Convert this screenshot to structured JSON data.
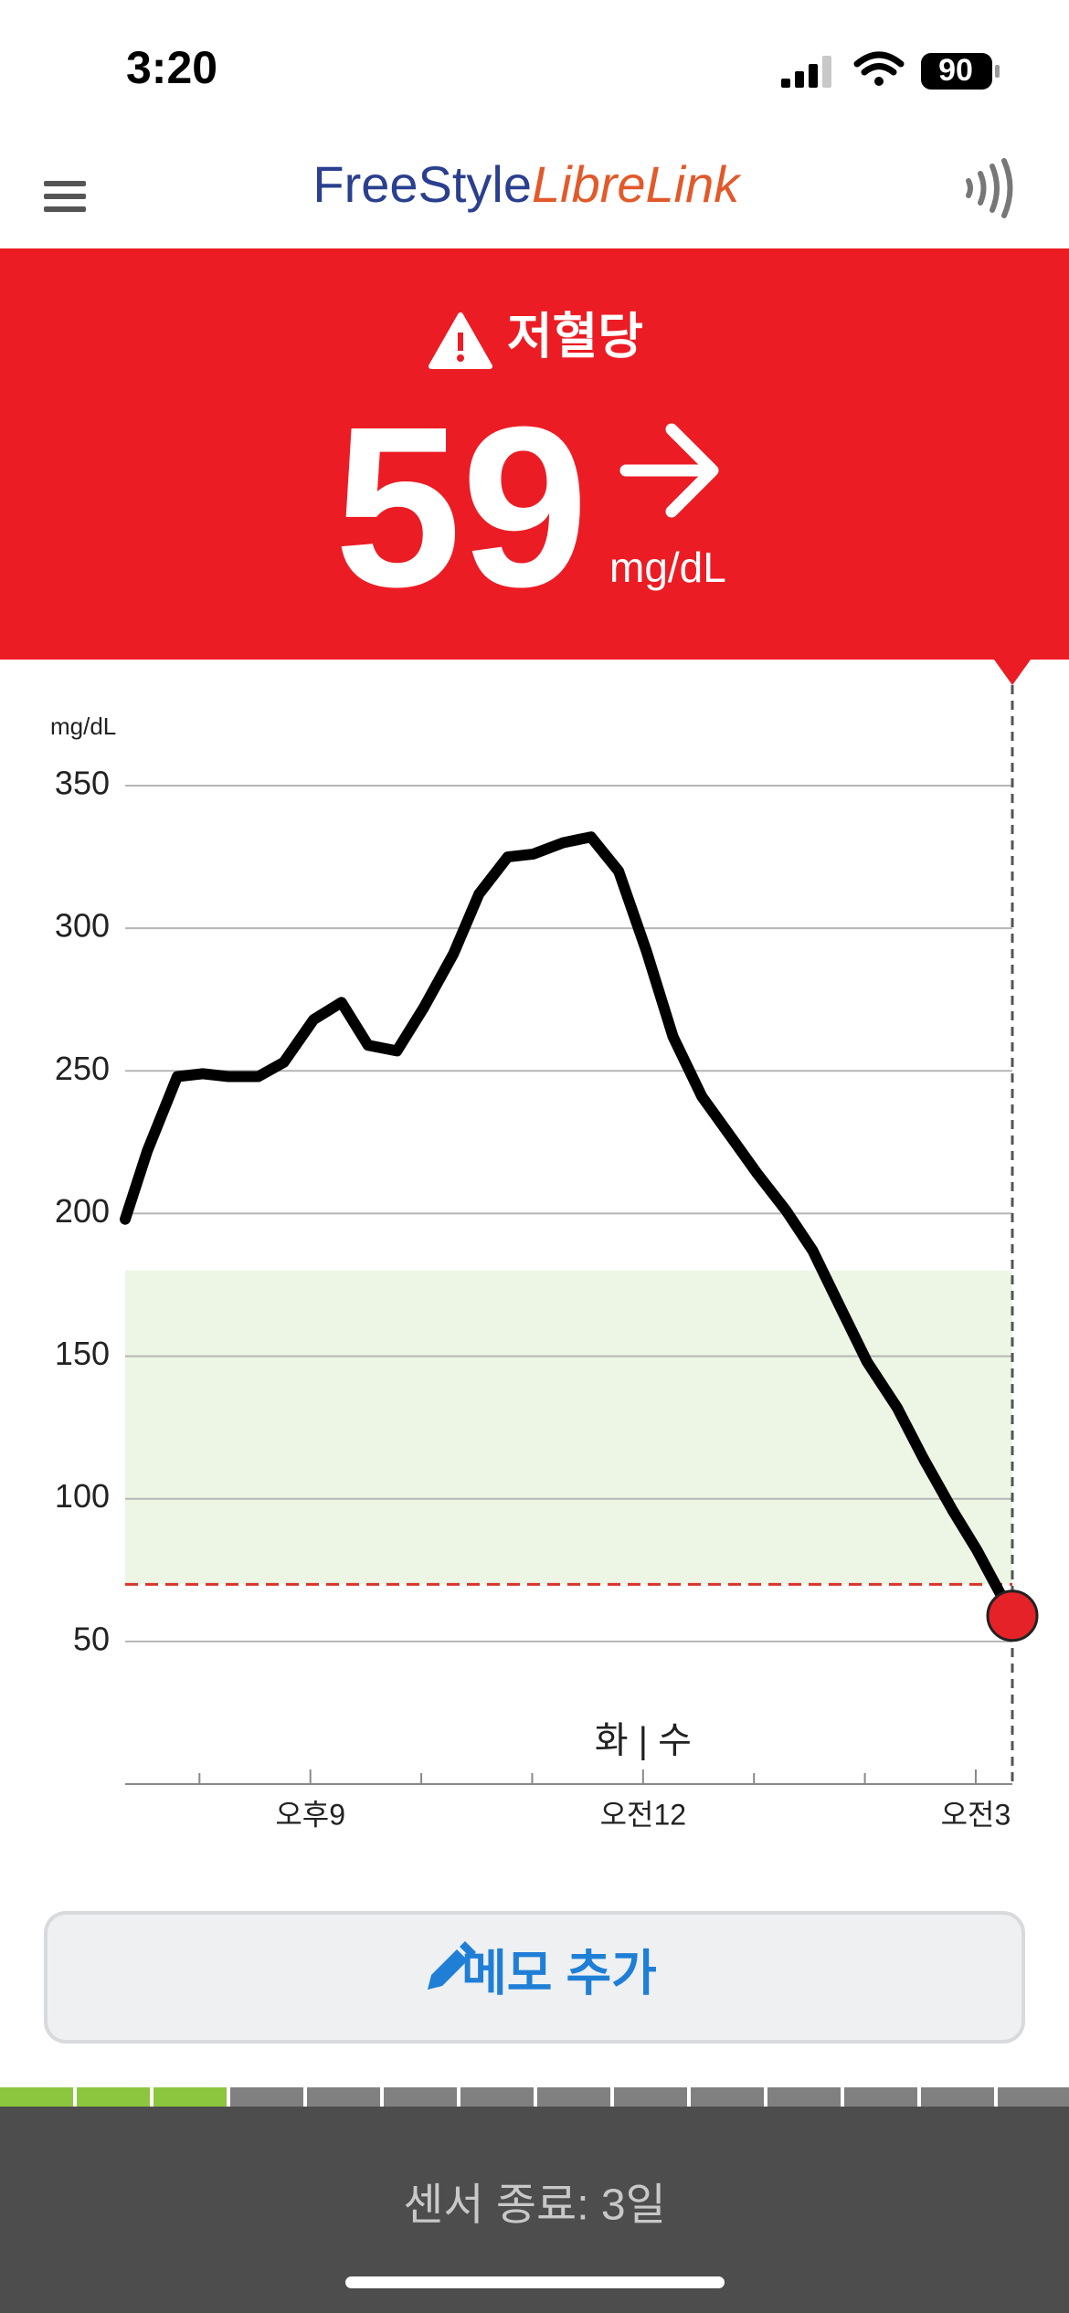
{
  "status_bar": {
    "time": "3:20",
    "battery": "90"
  },
  "header": {
    "logo_freestyle": "FreeStyle",
    "logo_librelink": "LibreLink"
  },
  "alert": {
    "title": "저혈당",
    "value": 59,
    "unit": "mg/dL"
  },
  "chart_data": {
    "type": "line",
    "y_label": "mg/dL",
    "day_label": "화 | 수",
    "x": [
      19.33,
      19.53,
      19.8,
      20.03,
      20.26,
      20.53,
      20.76,
      21.03,
      21.28,
      21.52,
      21.78,
      22.02,
      22.29,
      22.52,
      22.78,
      23.01,
      23.28,
      23.53,
      23.78,
      24.03,
      24.27,
      24.53,
      24.79,
      25.03,
      25.29,
      25.53,
      25.78,
      26.02,
      26.29,
      26.53,
      26.79,
      27.01,
      27.19,
      27.33
    ],
    "values": [
      198,
      222,
      248,
      249,
      248,
      248,
      253,
      268,
      274,
      259,
      257,
      272,
      291,
      312,
      325,
      326,
      330,
      332,
      320,
      292,
      262,
      241,
      227,
      214,
      201,
      187,
      167,
      148,
      132,
      114,
      96,
      82,
      69,
      59
    ],
    "color": "#000000",
    "ylim": [
      0,
      350
    ],
    "yticks": [
      50,
      100,
      150,
      200,
      250,
      300,
      350
    ],
    "xlim": [
      19.33,
      27.33
    ],
    "xticks": [
      {
        "value": 21,
        "label": "오후9"
      },
      {
        "value": 24,
        "label": "오전12"
      },
      {
        "value": 27,
        "label": "오전3"
      }
    ],
    "xminor_ticks": [
      20,
      22,
      23,
      25,
      26
    ],
    "target_range": [
      70,
      180
    ],
    "target_color": "#edf5e4",
    "low_threshold": 70,
    "low_color": "#d9342b",
    "current_color": "#e52228",
    "grid": true
  },
  "memo_button": {
    "label": "메모 추가"
  },
  "sensor": {
    "label": "센서 종료: 3일"
  }
}
